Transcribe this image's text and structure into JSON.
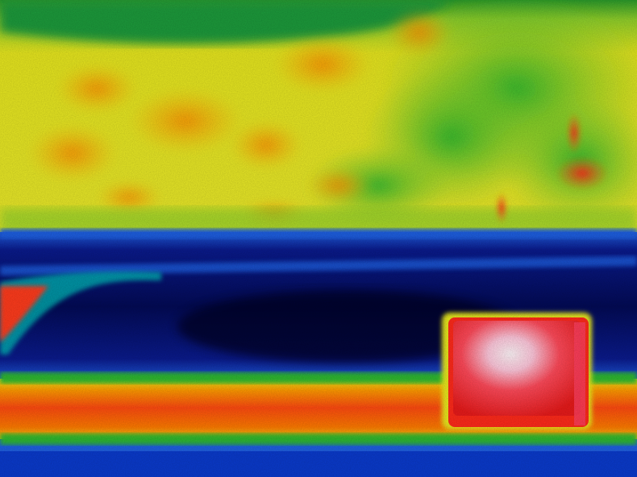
{
  "image": {
    "kind": "thermal-infrared-photo",
    "palette": [
      "#000033",
      "#0a1a8c",
      "#1f5fe0",
      "#00b4b4",
      "#2eb82e",
      "#e8e81a",
      "#ff9a00",
      "#ff2a1a",
      "#ffe6f0"
    ],
    "regions": {
      "warm_foliage_top": "yellow-green-orange",
      "cool_water_band": "dark-blue",
      "hot_object_right": "red-white",
      "warm_ground_strip": "orange-red",
      "cool_bottom_edge": "blue"
    }
  }
}
